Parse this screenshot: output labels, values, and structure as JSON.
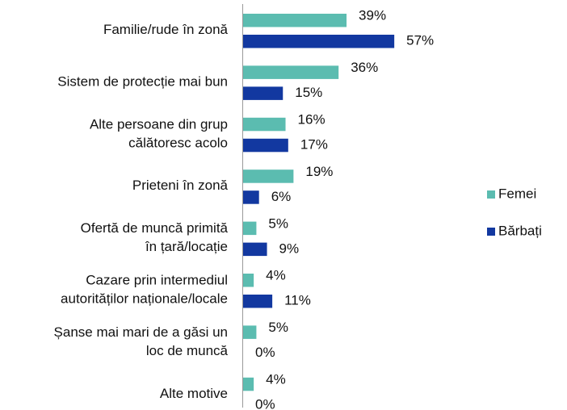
{
  "chart_data": {
    "type": "bar",
    "orientation": "horizontal",
    "categories": [
      "Familie/rude în zonă",
      "Sistem de protecție mai bun",
      "Alte persoane din grup\ncălătoresc acolo",
      "Prieteni în zonă",
      "Ofertă de muncă primită\nîn țară/locație",
      "Cazare prin intermediul\nautorităților naționale/locale",
      "Șanse mai mari de a găsi un\nloc de muncă",
      "Alte motive"
    ],
    "series": [
      {
        "name": "Femei",
        "color": "#5bbcb0",
        "values": [
          39,
          36,
          16,
          19,
          5,
          4,
          5,
          4
        ],
        "value_labels": [
          "39%",
          "36%",
          "16%",
          "19%",
          "5%",
          "4%",
          "5%",
          "4%"
        ]
      },
      {
        "name": "Bărbați",
        "color": "#1238a0",
        "values": [
          57,
          15,
          17,
          6,
          9,
          11,
          0,
          0
        ],
        "value_labels": [
          "57%",
          "15%",
          "17%",
          "6%",
          "9%",
          "11%",
          "0%",
          "0%"
        ]
      }
    ],
    "xlim": [
      0,
      60
    ],
    "legend": "right"
  }
}
